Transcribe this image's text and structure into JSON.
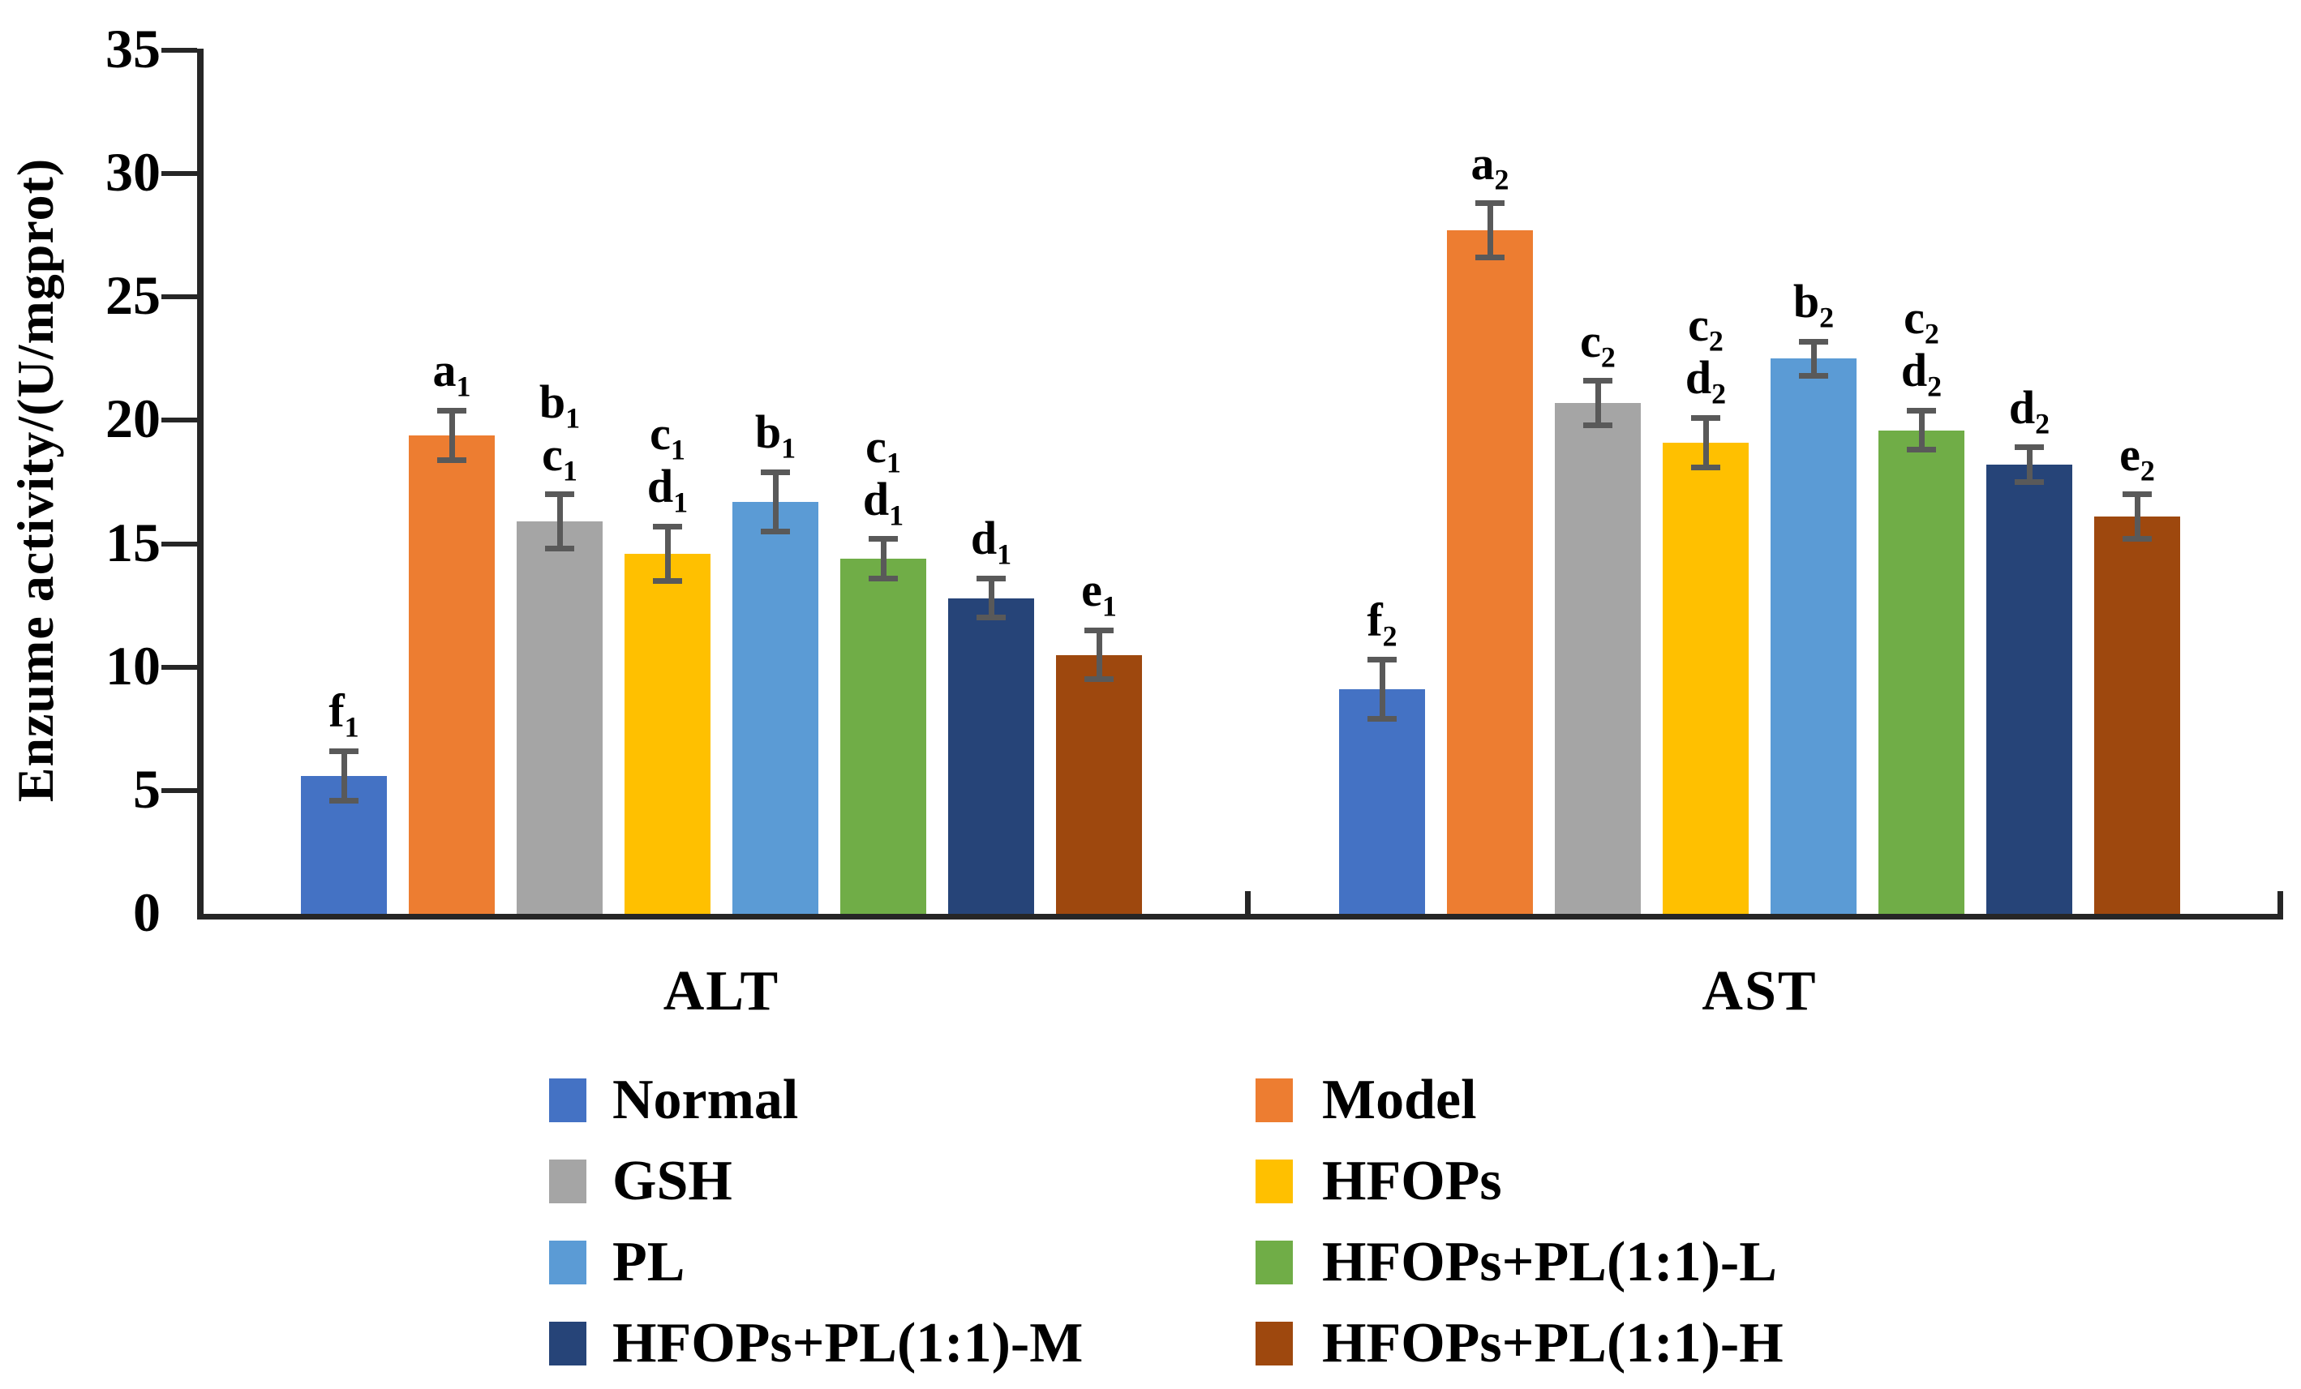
{
  "chart_data": {
    "type": "bar",
    "title": "",
    "ylabel": "Enzume activity/(U/mgprot)",
    "ylim": [
      0,
      35
    ],
    "yticks": [
      0,
      5,
      10,
      15,
      20,
      25,
      30,
      35
    ],
    "grid": false,
    "legend_position": "bottom-two-columns",
    "categories": [
      "ALT",
      "AST"
    ],
    "error_bar_color": "#595959",
    "axis_color": "#262626",
    "series": [
      {
        "name": "Normal",
        "color": "#4472C4",
        "values": [
          5.6,
          9.1
        ],
        "errors": [
          1.0,
          1.2
        ],
        "sig_labels": [
          [
            "f1"
          ],
          [
            "f2"
          ]
        ]
      },
      {
        "name": "Model",
        "color": "#ED7D31",
        "values": [
          19.4,
          27.7
        ],
        "errors": [
          1.0,
          1.1
        ],
        "sig_labels": [
          [
            "a1"
          ],
          [
            "a2"
          ]
        ]
      },
      {
        "name": "GSH",
        "color": "#A5A5A5",
        "values": [
          15.9,
          20.7
        ],
        "errors": [
          1.1,
          0.9
        ],
        "sig_labels": [
          [
            "b1",
            "c1"
          ],
          [
            "c2"
          ]
        ]
      },
      {
        "name": "HFOPs",
        "color": "#FFC000",
        "values": [
          14.6,
          19.1
        ],
        "errors": [
          1.1,
          1.0
        ],
        "sig_labels": [
          [
            "c1",
            "d1"
          ],
          [
            "c2",
            "d2"
          ]
        ]
      },
      {
        "name": "PL",
        "color": "#5B9BD5",
        "values": [
          16.7,
          22.5
        ],
        "errors": [
          1.2,
          0.7
        ],
        "sig_labels": [
          [
            "b1"
          ],
          [
            "b2"
          ]
        ]
      },
      {
        "name": "HFOPs+PL(1:1)-L",
        "color": "#70AD47",
        "values": [
          14.4,
          19.6
        ],
        "errors": [
          0.8,
          0.8
        ],
        "sig_labels": [
          [
            "c1",
            "d1"
          ],
          [
            "c2",
            "d2"
          ]
        ]
      },
      {
        "name": "HFOPs+PL(1:1)-M",
        "color": "#264478",
        "values": [
          12.8,
          18.2
        ],
        "errors": [
          0.8,
          0.7
        ],
        "sig_labels": [
          [
            "d1"
          ],
          [
            "d2"
          ]
        ]
      },
      {
        "name": "HFOPs+PL(1:1)-H",
        "color": "#9E480E",
        "values": [
          10.5,
          16.1
        ],
        "errors": [
          1.0,
          0.9
        ],
        "sig_labels": [
          [
            "e1"
          ],
          [
            "e2"
          ]
        ]
      }
    ]
  }
}
